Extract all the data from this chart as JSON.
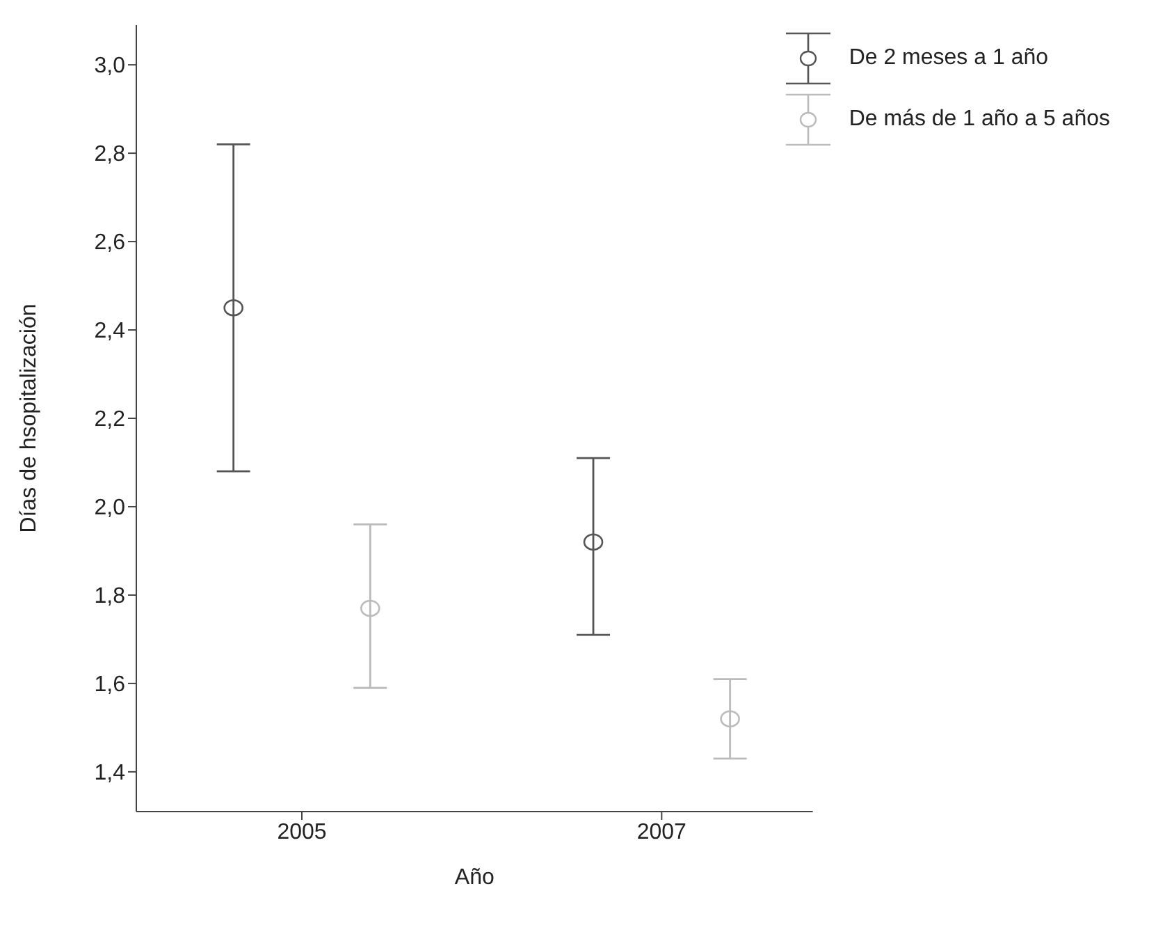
{
  "chart_data": {
    "type": "scatter",
    "xlabel": "Año",
    "ylabel": "Días de hsopitalización",
    "categories": [
      "2005",
      "2007"
    ],
    "series": [
      {
        "name": "De 2 meses a 1 año",
        "color": "#555555",
        "values": [
          2.45,
          1.92
        ],
        "errors": [
          [
            2.08,
            2.82
          ],
          [
            1.71,
            2.11
          ]
        ]
      },
      {
        "name": "De más de 1 año a 5 años",
        "color": "#bbbbbb",
        "values": [
          1.77,
          1.52
        ],
        "errors": [
          [
            1.59,
            1.96
          ],
          [
            1.43,
            1.61
          ]
        ]
      }
    ],
    "ylim": [
      1.31,
      3.09
    ],
    "yticks": [
      {
        "value": 1.4,
        "label": "1,4"
      },
      {
        "value": 1.6,
        "label": "1,6"
      },
      {
        "value": 1.8,
        "label": "1,8"
      },
      {
        "value": 2.0,
        "label": "2,0"
      },
      {
        "value": 2.2,
        "label": "2,2"
      },
      {
        "value": 2.4,
        "label": "2,4"
      },
      {
        "value": 2.6,
        "label": "2,6"
      },
      {
        "value": 2.8,
        "label": "2,8"
      },
      {
        "value": 3.0,
        "label": "3,0"
      }
    ],
    "marker": "circle",
    "legend": "top right",
    "grid": false
  }
}
